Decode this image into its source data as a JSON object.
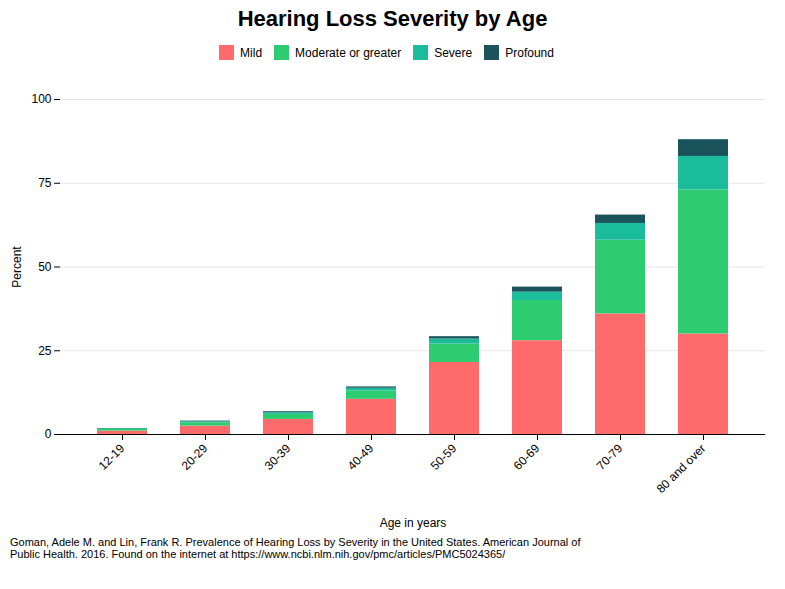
{
  "chart_data": {
    "type": "bar",
    "stacked": true,
    "title": "Hearing Loss Severity by Age",
    "xlabel": "Age in years",
    "ylabel": "Percent",
    "categories": [
      "12-19",
      "20-29",
      "30-39",
      "40-49",
      "50-59",
      "60-69",
      "70-79",
      "80 and over"
    ],
    "series": [
      {
        "name": "Mild",
        "color": "#FF6B6B",
        "values": [
          1.0,
          2.5,
          4.5,
          10.5,
          21.5,
          28.0,
          36.0,
          30.0
        ]
      },
      {
        "name": "Moderate or greater",
        "color": "#2ECC71",
        "values": [
          0.5,
          1.0,
          1.5,
          2.5,
          5.5,
          12.0,
          22.0,
          43.0
        ]
      },
      {
        "name": "Severe",
        "color": "#1ABC9C",
        "values": [
          0.2,
          0.3,
          0.5,
          0.8,
          1.5,
          2.5,
          5.0,
          10.0
        ]
      },
      {
        "name": "Profound",
        "color": "#1A535C",
        "values": [
          0.1,
          0.2,
          0.3,
          0.4,
          0.7,
          1.5,
          2.5,
          5.0
        ]
      }
    ],
    "ylim": [
      0,
      100
    ],
    "yticks": [
      0,
      25,
      50,
      75,
      100
    ],
    "grid": true,
    "legend": "top",
    "caption": "Goman, Adele M. and Lin, Frank R. Prevalence of Hearing Loss by Severity in the United States. American Journal of\nPublic Health. 2016. Found on the internet at https://www.ncbi.nlm.nih.gov/pmc/articles/PMC5024365/"
  }
}
